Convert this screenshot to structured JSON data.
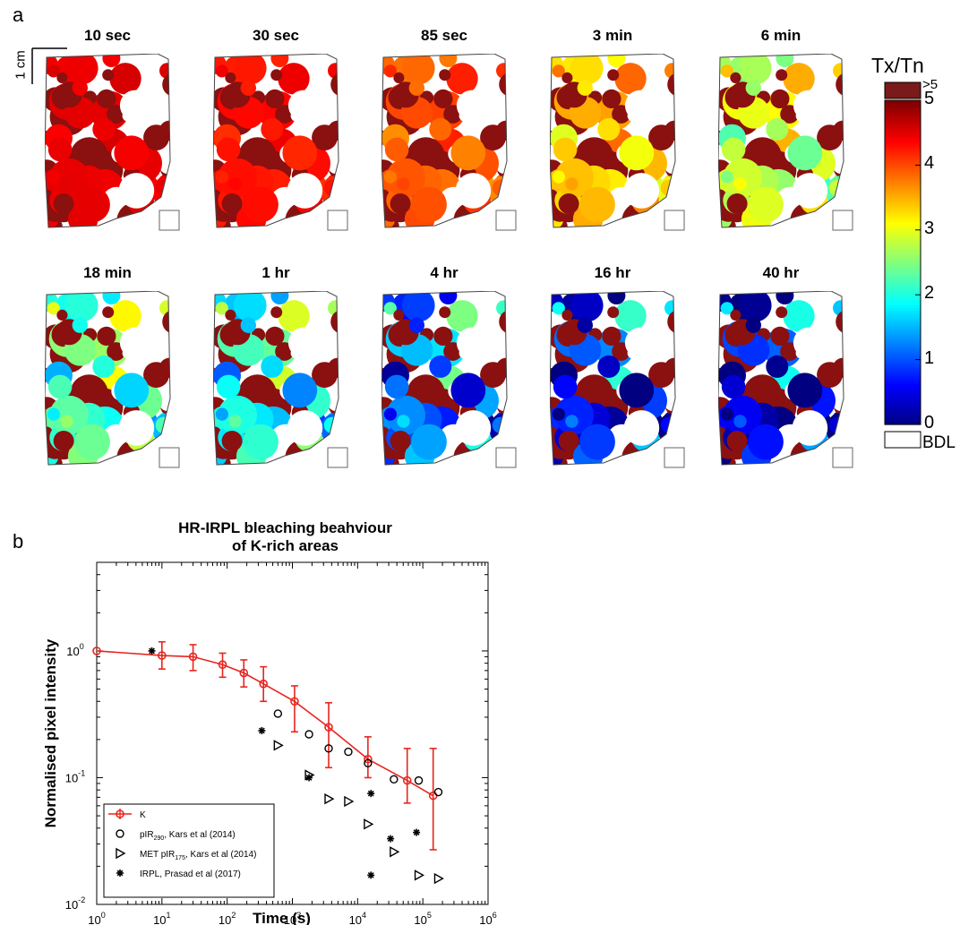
{
  "panel_a": {
    "letter": "a",
    "scale_label": "1 cm",
    "maps": [
      {
        "title": "10 sec",
        "level": 0.06
      },
      {
        "title": "30 sec",
        "level": 0.1
      },
      {
        "title": "85 sec",
        "level": 0.18
      },
      {
        "title": "3 min",
        "level": 0.3
      },
      {
        "title": "6 min",
        "level": 0.42
      },
      {
        "title": "18 min",
        "level": 0.55
      },
      {
        "title": "1 hr",
        "level": 0.62
      },
      {
        "title": "4 hr",
        "level": 0.78
      },
      {
        "title": "16 hr",
        "level": 0.9
      },
      {
        "title": "40 hr",
        "level": 0.95
      }
    ],
    "colorbar": {
      "title": "Tx/Tn",
      "over_label": ">5",
      "under_label": "BDL",
      "ticks": [
        "0",
        "1",
        "2",
        "3",
        "4",
        "5"
      ],
      "range": [
        0,
        5
      ],
      "over_color": "#7a1a1a",
      "under_color": "#ffffff"
    }
  },
  "panel_b": {
    "letter": "b"
  },
  "chart_data": {
    "type": "scatter",
    "title": "HR-IRPL bleaching beahviour\nof K-rich areas",
    "xlabel": "Time (s)",
    "ylabel": "Normalised pixel intensity",
    "xscale": "log",
    "yscale": "log",
    "xlim": [
      1,
      1000000
    ],
    "ylim": [
      0.01,
      5
    ],
    "x_tick_labels": [
      "10^0",
      "10^1",
      "10^2",
      "10^3",
      "10^4",
      "10^5",
      "10^6"
    ],
    "y_tick_labels": [
      "10^-2",
      "10^-1",
      "10^0"
    ],
    "legend_position": "bottom-left",
    "series": [
      {
        "name": "K",
        "marker": "circle-line",
        "color": "#e8251f",
        "points": [
          {
            "x": 1,
            "y": 1.0,
            "lo": 1.0,
            "hi": 1.0
          },
          {
            "x": 10,
            "y": 0.92,
            "lo": 0.72,
            "hi": 1.18
          },
          {
            "x": 30,
            "y": 0.9,
            "lo": 0.7,
            "hi": 1.12
          },
          {
            "x": 85,
            "y": 0.78,
            "lo": 0.62,
            "hi": 0.96
          },
          {
            "x": 180,
            "y": 0.67,
            "lo": 0.52,
            "hi": 0.85
          },
          {
            "x": 360,
            "y": 0.55,
            "lo": 0.4,
            "hi": 0.75
          },
          {
            "x": 1080,
            "y": 0.4,
            "lo": 0.23,
            "hi": 0.53
          },
          {
            "x": 3600,
            "y": 0.25,
            "lo": 0.12,
            "hi": 0.39
          },
          {
            "x": 14400,
            "y": 0.14,
            "lo": 0.1,
            "hi": 0.21
          },
          {
            "x": 57600,
            "y": 0.095,
            "lo": 0.063,
            "hi": 0.17
          },
          {
            "x": 144000,
            "y": 0.072,
            "lo": 0.027,
            "hi": 0.17
          }
        ]
      },
      {
        "name": "pIR290, Kars et al (2014)",
        "marker": "circle-open",
        "points": [
          {
            "x": 600,
            "y": 0.32
          },
          {
            "x": 1800,
            "y": 0.22
          },
          {
            "x": 3600,
            "y": 0.17
          },
          {
            "x": 7200,
            "y": 0.16
          },
          {
            "x": 14400,
            "y": 0.13
          },
          {
            "x": 36000,
            "y": 0.097
          },
          {
            "x": 86400,
            "y": 0.095
          },
          {
            "x": 172800,
            "y": 0.077
          }
        ]
      },
      {
        "name": "MET pIR175, Kars et al (2014)",
        "marker": "triangle-right",
        "points": [
          {
            "x": 600,
            "y": 0.18
          },
          {
            "x": 1800,
            "y": 0.105
          },
          {
            "x": 3600,
            "y": 0.068
          },
          {
            "x": 7200,
            "y": 0.065
          },
          {
            "x": 14400,
            "y": 0.043
          },
          {
            "x": 36000,
            "y": 0.026
          },
          {
            "x": 86400,
            "y": 0.017
          },
          {
            "x": 172800,
            "y": 0.016
          }
        ]
      },
      {
        "name": "IRPL, Prasad et al (2017)",
        "marker": "asterisk",
        "points": [
          {
            "x": 7,
            "y": 1.0
          },
          {
            "x": 340,
            "y": 0.235
          },
          {
            "x": 1800,
            "y": 0.1
          },
          {
            "x": 16000,
            "y": 0.075
          },
          {
            "x": 32000,
            "y": 0.033
          },
          {
            "x": 16000,
            "y": 0.017
          },
          {
            "x": 80000,
            "y": 0.037
          }
        ]
      }
    ]
  }
}
